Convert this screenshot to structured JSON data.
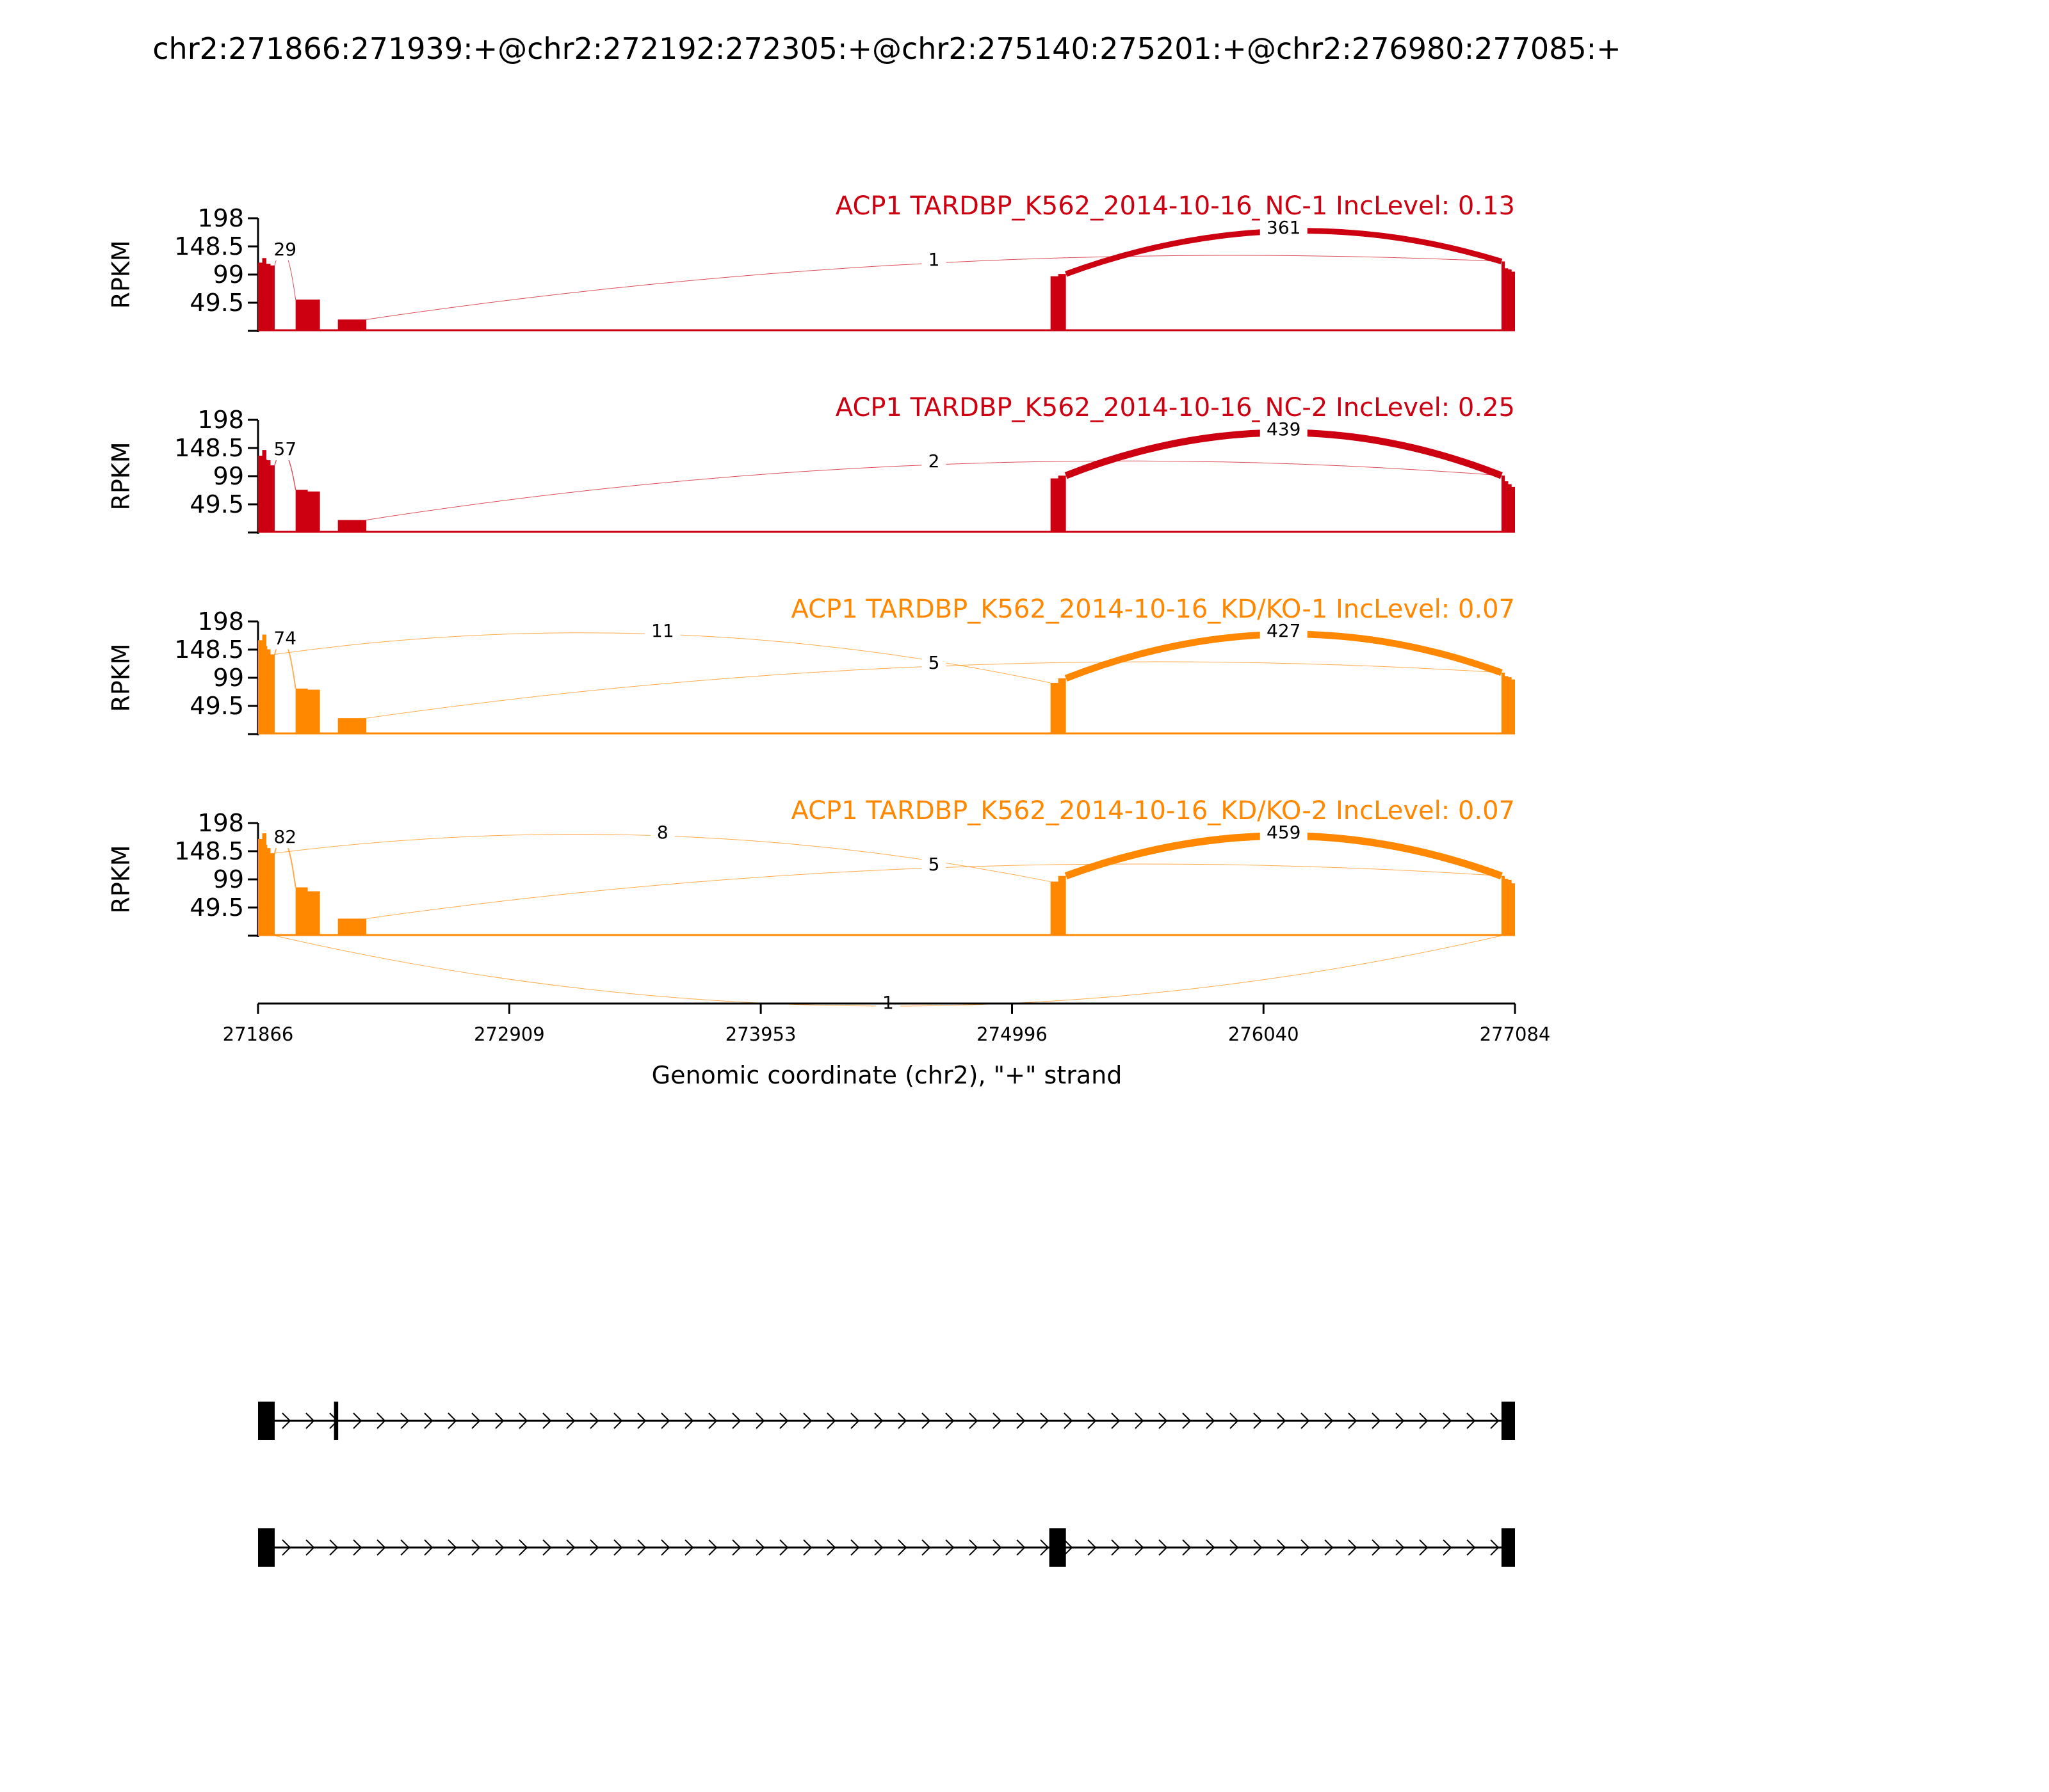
{
  "chart_data": {
    "type": "area",
    "title": "chr2:271866:271939:+@chr2:272192:272305:+@chr2:275140:275201:+@chr2:276980:277085:+",
    "ylabel": "RPKM",
    "xlabel": "Genomic coordinate (chr2), \"+\" strand",
    "xlim": [
      271866,
      277084
    ],
    "x_ticks": [
      "271866",
      "272909",
      "273953",
      "274996",
      "276040",
      "277084"
    ],
    "ylim": [
      0,
      198
    ],
    "y_ticks": [
      "198",
      "148.5",
      "99",
      "49.5"
    ],
    "exons": [
      {
        "start": 271866,
        "end": 271939
      },
      {
        "start": 272192,
        "end": 272305
      },
      {
        "start": 275140,
        "end": 275201
      },
      {
        "start": 276980,
        "end": 277085
      }
    ],
    "series": [
      {
        "name": "ACP1 TARDBP_K562_2014-10-16_NC-1 IncLevel: 0.13",
        "color": "#CC0011",
        "coverage": {
          "e1": [
            120,
            128,
            118,
            115
          ],
          "e2": [
            55,
            55
          ],
          "e3": [
            20,
            20
          ],
          "e4": [
            96,
            100
          ],
          "e5": [
            122,
            110,
            108,
            104
          ]
        },
        "junctions": [
          {
            "label": "29",
            "from": 271939,
            "to": 272192,
            "count": 29,
            "side": "above"
          },
          {
            "label": "1",
            "from": 272305,
            "to": 276980,
            "count": 1,
            "side": "above"
          },
          {
            "label": "361",
            "from": 275201,
            "to": 276980,
            "count": 361,
            "side": "above"
          }
        ]
      },
      {
        "name": "ACP1 TARDBP_K562_2014-10-16_NC-2 IncLevel: 0.25",
        "color": "#CC0011",
        "coverage": {
          "e1": [
            135,
            145,
            128,
            118
          ],
          "e2": [
            75,
            72
          ],
          "e3": [
            22,
            22
          ],
          "e4": [
            95,
            100
          ],
          "e5": [
            100,
            90,
            85,
            80
          ]
        },
        "junctions": [
          {
            "label": "57",
            "from": 271939,
            "to": 272192,
            "count": 57,
            "side": "above"
          },
          {
            "label": "2",
            "from": 272305,
            "to": 276980,
            "count": 2,
            "side": "above"
          },
          {
            "label": "439",
            "from": 275201,
            "to": 276980,
            "count": 439,
            "side": "above"
          }
        ]
      },
      {
        "name": "ACP1 TARDBP_K562_2014-10-16_KD/KO-1 IncLevel: 0.07",
        "color": "#FF8800",
        "coverage": {
          "e1": [
            165,
            175,
            155,
            140
          ],
          "e2": [
            80,
            78
          ],
          "e3": [
            28,
            28
          ],
          "e4": [
            90,
            98
          ],
          "e5": [
            108,
            102,
            100,
            96
          ]
        },
        "junctions": [
          {
            "label": "74",
            "from": 271939,
            "to": 272192,
            "count": 74,
            "side": "above"
          },
          {
            "label": "11",
            "from": 271939,
            "to": 275140,
            "count": 11,
            "side": "above"
          },
          {
            "label": "5",
            "from": 272305,
            "to": 276980,
            "count": 5,
            "side": "above"
          },
          {
            "label": "427",
            "from": 275201,
            "to": 276980,
            "count": 427,
            "side": "above"
          }
        ]
      },
      {
        "name": "ACP1 TARDBP_K562_2014-10-16_KD/KO-2 IncLevel: 0.07",
        "color": "#FF8800",
        "coverage": {
          "e1": [
            170,
            180,
            160,
            145
          ],
          "e2": [
            85,
            78
          ],
          "e3": [
            30,
            30
          ],
          "e4": [
            95,
            105
          ],
          "e5": [
            105,
            100,
            98,
            92
          ]
        },
        "junctions": [
          {
            "label": "82",
            "from": 271939,
            "to": 272192,
            "count": 82,
            "side": "above"
          },
          {
            "label": "8",
            "from": 271939,
            "to": 275140,
            "count": 8,
            "side": "above"
          },
          {
            "label": "5",
            "from": 272305,
            "to": 276980,
            "count": 5,
            "side": "above"
          },
          {
            "label": "459",
            "from": 275201,
            "to": 276980,
            "count": 459,
            "side": "above"
          },
          {
            "label": "1",
            "from": 271939,
            "to": 276980,
            "count": 1,
            "side": "below"
          }
        ]
      }
    ],
    "isoforms": [
      {
        "exons": [
          [
            271866,
            271939
          ],
          [
            272192,
            272305
          ],
          [
            276980,
            277085
          ]
        ]
      },
      {
        "exons": [
          [
            271866,
            271939
          ],
          [
            275140,
            275201
          ],
          [
            276980,
            277085
          ]
        ]
      }
    ]
  }
}
